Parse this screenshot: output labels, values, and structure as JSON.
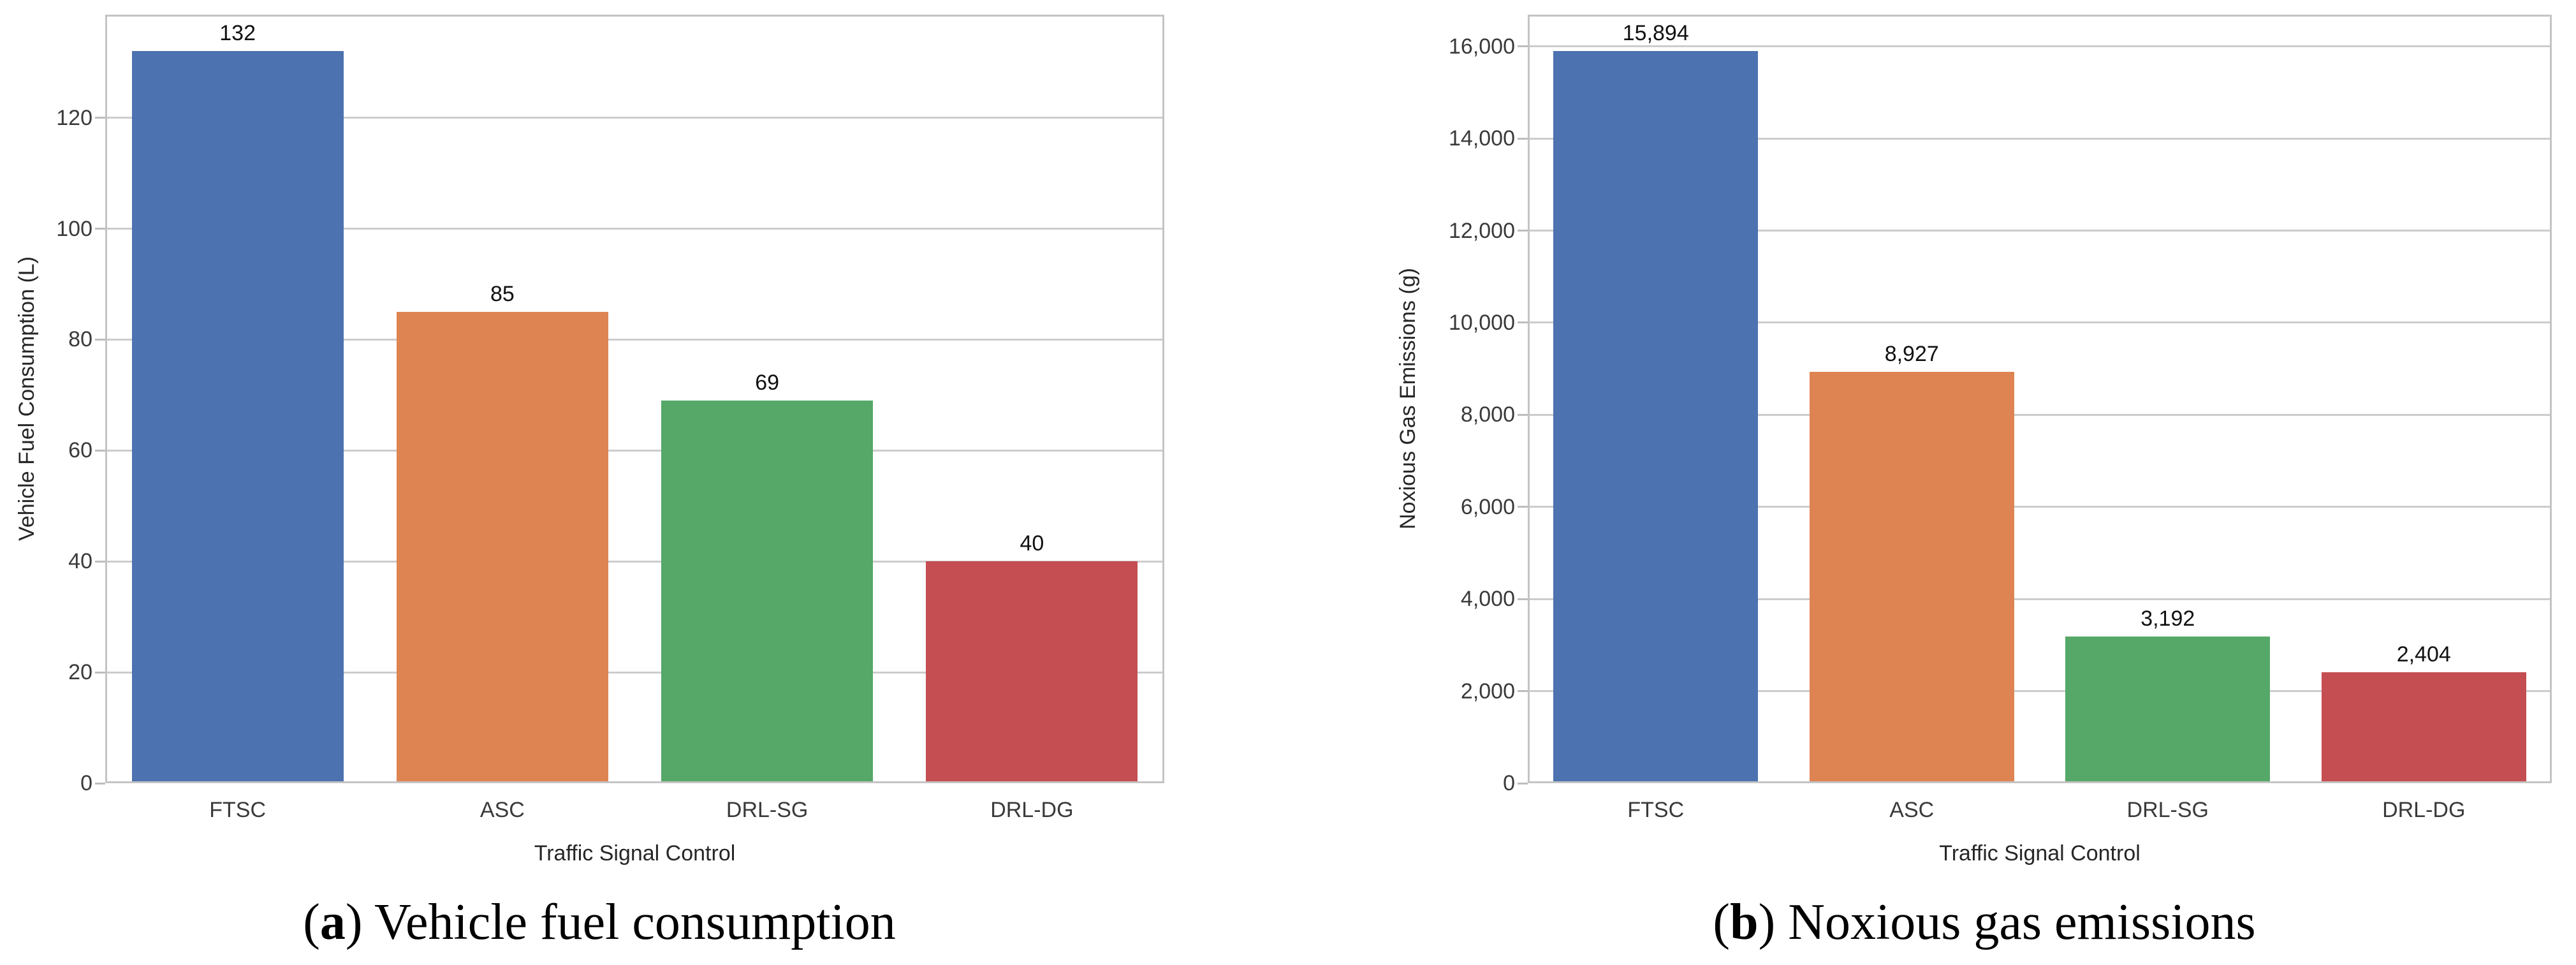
{
  "style": {
    "background": "#ffffff",
    "bar_palette": [
      "#4C72B0",
      "#DD8452",
      "#55A868",
      "#C44E52"
    ],
    "grid_color": "#cccccc",
    "spine_color": "#c4c4c4",
    "tick_text_color": "#3a3a3a",
    "axis_label_color": "#262626",
    "value_label_color": "#111111",
    "caption_color": "#000000"
  },
  "chart_data": [
    {
      "type": "bar",
      "panel": "a",
      "caption": {
        "pre": "(",
        "letter": "a",
        "rest": ") Vehicle fuel consumption"
      },
      "xlabel": "Traffic Signal Control",
      "ylabel": "Vehicle Fuel Consumption (L)",
      "categories": [
        "FTSC",
        "ASC",
        "DRL-SG",
        "DRL-DG"
      ],
      "values": [
        132,
        85,
        69,
        40
      ],
      "value_labels": [
        "132",
        "85",
        "69",
        "40"
      ],
      "yticks": [
        0,
        20,
        40,
        60,
        80,
        100,
        120
      ],
      "ytick_labels": [
        "0",
        "20",
        "40",
        "60",
        "80",
        "100",
        "120"
      ],
      "ylim": [
        0,
        138.6
      ],
      "grid": true,
      "legend": null,
      "bar_colors": [
        "#4C72B0",
        "#DD8452",
        "#55A868",
        "#C44E52"
      ]
    },
    {
      "type": "bar",
      "panel": "b",
      "caption": {
        "pre": "(",
        "letter": "b",
        "rest": ") Noxious gas emissions"
      },
      "xlabel": "Traffic Signal Control",
      "ylabel": "Noxious Gas Emissions (g)",
      "categories": [
        "FTSC",
        "ASC",
        "DRL-SG",
        "DRL-DG"
      ],
      "values": [
        15894,
        8927,
        3192,
        2404
      ],
      "value_labels": [
        "15,894",
        "8,927",
        "3,192",
        "2,404"
      ],
      "yticks": [
        0,
        2000,
        4000,
        6000,
        8000,
        10000,
        12000,
        14000,
        16000
      ],
      "ytick_labels": [
        "0",
        "2,000",
        "4,000",
        "6,000",
        "8,000",
        "10,000",
        "12,000",
        "14,000",
        "16,000"
      ],
      "ylim": [
        0,
        16689
      ],
      "grid": true,
      "legend": null,
      "bar_colors": [
        "#4C72B0",
        "#DD8452",
        "#55A868",
        "#C44E52"
      ]
    }
  ]
}
